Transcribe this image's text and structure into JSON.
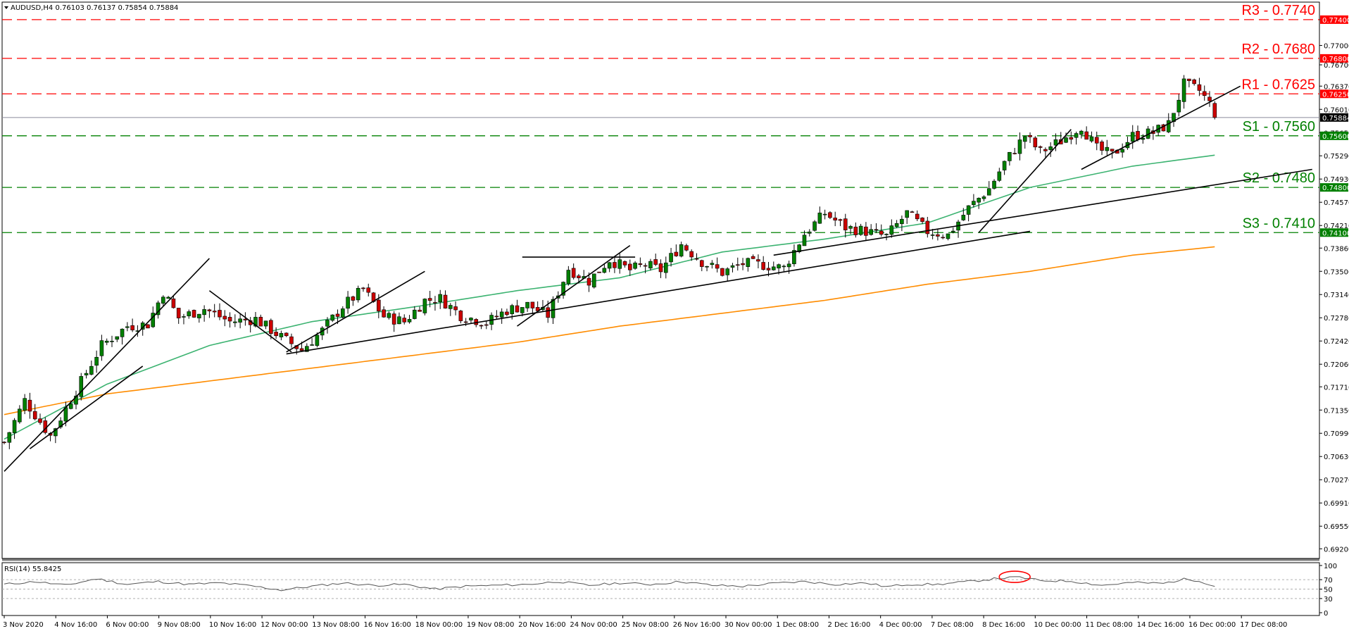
{
  "header": {
    "info": "AUDUSD,H4  0.76103 0.76137 0.75854 0.75884",
    "rsi_info": "RSI(14) 55.8425"
  },
  "chart_data": {
    "type": "candlestick",
    "symbol": "AUDUSD",
    "timeframe": "H4",
    "ohlc_last": {
      "open": 0.76103,
      "high": 0.76137,
      "low": 0.75854,
      "close": 0.75884
    },
    "current_price": 0.75884,
    "ylim": [
      0.6905,
      0.7765
    ],
    "ytick_labels": [
      "0.77400",
      "0.77000",
      "0.76700",
      "0.76370",
      "0.76010",
      "0.75650",
      "0.75290",
      "0.74930",
      "0.74570",
      "0.74210",
      "0.73860",
      "0.73500",
      "0.73140",
      "0.72780",
      "0.72420",
      "0.72060",
      "0.71710",
      "0.71350",
      "0.70990",
      "0.70630",
      "0.70270",
      "0.69910",
      "0.69550",
      "0.69200"
    ],
    "ytick_values": [
      0.774,
      0.77,
      0.767,
      0.7637,
      0.7601,
      0.7565,
      0.7529,
      0.7493,
      0.7457,
      0.7421,
      0.7386,
      0.735,
      0.7314,
      0.7278,
      0.7242,
      0.7206,
      0.7171,
      0.7135,
      0.7099,
      0.7063,
      0.7027,
      0.6991,
      0.6955,
      0.692
    ],
    "xtick_labels": [
      "3 Nov 2020",
      "4 Nov 16:00",
      "6 Nov 00:00",
      "9 Nov 08:00",
      "10 Nov 16:00",
      "12 Nov 00:00",
      "13 Nov 08:00",
      "16 Nov 16:00",
      "18 Nov 00:00",
      "19 Nov 08:00",
      "20 Nov 16:00",
      "24 Nov 00:00",
      "25 Nov 08:00",
      "26 Nov 16:00",
      "30 Nov 00:00",
      "1 Dec 08:00",
      "2 Dec 16:00",
      "4 Dec 00:00",
      "7 Dec 08:00",
      "8 Dec 16:00",
      "10 Dec 00:00",
      "11 Dec 08:00",
      "14 Dec 16:00",
      "16 Dec 00:00",
      "17 Dec 08:00"
    ],
    "levels": [
      {
        "label": "R3 - 0.7740",
        "value": 0.774,
        "tag": "0.77400",
        "color": "#ff0000"
      },
      {
        "label": "R2 - 0.7680",
        "value": 0.768,
        "tag": "0.76800",
        "color": "#ff0000"
      },
      {
        "label": "R1 - 0.7625",
        "value": 0.7625,
        "tag": "0.76250",
        "color": "#ff0000"
      },
      {
        "label": "S1 - 0.7560",
        "value": 0.756,
        "tag": "0.75600",
        "color": "#008000"
      },
      {
        "label": "S2 - 0.7480",
        "value": 0.748,
        "tag": "0.74800",
        "color": "#008000"
      },
      {
        "label": "S3 - 0.7410",
        "value": 0.741,
        "tag": "0.74100",
        "color": "#008000"
      }
    ],
    "price_tag": "0.75884",
    "candle_anchors": [
      [
        0,
        0.7085
      ],
      [
        4,
        0.715
      ],
      [
        9,
        0.7095
      ],
      [
        14,
        0.7165
      ],
      [
        19,
        0.7235
      ],
      [
        24,
        0.7265
      ],
      [
        28,
        0.7268
      ],
      [
        31,
        0.7318
      ],
      [
        34,
        0.7278
      ],
      [
        39,
        0.7292
      ],
      [
        44,
        0.7272
      ],
      [
        49,
        0.7276
      ],
      [
        54,
        0.7248
      ],
      [
        58,
        0.7228
      ],
      [
        62,
        0.7258
      ],
      [
        66,
        0.7296
      ],
      [
        70,
        0.7322
      ],
      [
        74,
        0.728
      ],
      [
        78,
        0.7272
      ],
      [
        82,
        0.7305
      ],
      [
        85,
        0.7308
      ],
      [
        89,
        0.7282
      ],
      [
        94,
        0.727
      ],
      [
        98,
        0.729
      ],
      [
        102,
        0.7298
      ],
      [
        106,
        0.7282
      ],
      [
        110,
        0.7354
      ],
      [
        114,
        0.7335
      ],
      [
        118,
        0.7368
      ],
      [
        122,
        0.7352
      ],
      [
        125,
        0.736
      ],
      [
        128,
        0.7352
      ],
      [
        132,
        0.7392
      ],
      [
        136,
        0.7365
      ],
      [
        140,
        0.7348
      ],
      [
        144,
        0.7362
      ],
      [
        148,
        0.736
      ],
      [
        152,
        0.7355
      ],
      [
        156,
        0.7408
      ],
      [
        160,
        0.744
      ],
      [
        164,
        0.7418
      ],
      [
        168,
        0.7412
      ],
      [
        172,
        0.7404
      ],
      [
        176,
        0.744
      ],
      [
        180,
        0.7412
      ],
      [
        184,
        0.7406
      ],
      [
        188,
        0.7448
      ],
      [
        192,
        0.7478
      ],
      [
        195,
        0.7518
      ],
      [
        199,
        0.756
      ],
      [
        202,
        0.7535
      ],
      [
        206,
        0.7552
      ],
      [
        210,
        0.7575
      ],
      [
        213,
        0.754
      ],
      [
        216,
        0.753
      ],
      [
        220,
        0.756
      ],
      [
        224,
        0.7565
      ],
      [
        227,
        0.7578
      ],
      [
        230,
        0.764
      ],
      [
        233,
        0.763
      ],
      [
        235,
        0.761
      ],
      [
        236,
        0.75884
      ]
    ],
    "ema_green": [
      [
        0,
        0.709
      ],
      [
        20,
        0.7175
      ],
      [
        40,
        0.7235
      ],
      [
        60,
        0.7272
      ],
      [
        80,
        0.7295
      ],
      [
        100,
        0.732
      ],
      [
        120,
        0.734
      ],
      [
        140,
        0.738
      ],
      [
        160,
        0.74
      ],
      [
        180,
        0.7425
      ],
      [
        200,
        0.748
      ],
      [
        220,
        0.7513
      ],
      [
        236,
        0.753
      ]
    ],
    "ema_orange": [
      [
        0,
        0.7128
      ],
      [
        20,
        0.716
      ],
      [
        40,
        0.718
      ],
      [
        60,
        0.72
      ],
      [
        80,
        0.722
      ],
      [
        100,
        0.724
      ],
      [
        120,
        0.7265
      ],
      [
        140,
        0.7285
      ],
      [
        160,
        0.7305
      ],
      [
        180,
        0.733
      ],
      [
        200,
        0.735
      ],
      [
        220,
        0.7375
      ],
      [
        236,
        0.7388
      ]
    ],
    "trendlines": [
      [
        [
          0,
          0.704
        ],
        [
          40,
          0.737
        ]
      ],
      [
        [
          5,
          0.7075
        ],
        [
          27,
          0.7203
        ]
      ],
      [
        [
          40,
          0.732
        ],
        [
          56,
          0.7225
        ]
      ],
      [
        [
          55,
          0.7225
        ],
        [
          82,
          0.735
        ]
      ],
      [
        [
          55,
          0.7222
        ],
        [
          200,
          0.7412
        ]
      ],
      [
        [
          100,
          0.7265
        ],
        [
          122,
          0.739
        ]
      ],
      [
        [
          101,
          0.7372
        ],
        [
          123,
          0.7372
        ]
      ],
      [
        [
          190,
          0.741
        ],
        [
          208,
          0.757
        ]
      ],
      [
        [
          210,
          0.7508
        ],
        [
          241,
          0.7637
        ]
      ],
      [
        [
          150,
          0.7375
        ],
        [
          255,
          0.7508
        ]
      ]
    ],
    "rsi": {
      "value": 55.8425,
      "ylim": [
        0,
        100
      ],
      "ytick_labels": [
        "100",
        "70",
        "50",
        "30",
        "0"
      ],
      "ytick_values": [
        100,
        70,
        50,
        30,
        0
      ],
      "anchors": [
        [
          0,
          60
        ],
        [
          6,
          66
        ],
        [
          12,
          58
        ],
        [
          18,
          72
        ],
        [
          24,
          60
        ],
        [
          30,
          66
        ],
        [
          36,
          60
        ],
        [
          42,
          63
        ],
        [
          48,
          57
        ],
        [
          54,
          48
        ],
        [
          60,
          56
        ],
        [
          66,
          63
        ],
        [
          72,
          58
        ],
        [
          78,
          60
        ],
        [
          84,
          50
        ],
        [
          90,
          56
        ],
        [
          96,
          58
        ],
        [
          102,
          60
        ],
        [
          108,
          66
        ],
        [
          114,
          58
        ],
        [
          120,
          63
        ],
        [
          126,
          60
        ],
        [
          132,
          66
        ],
        [
          138,
          58
        ],
        [
          144,
          56
        ],
        [
          150,
          62
        ],
        [
          156,
          66
        ],
        [
          162,
          60
        ],
        [
          168,
          63
        ],
        [
          172,
          55
        ],
        [
          176,
          60
        ],
        [
          182,
          60
        ],
        [
          188,
          66
        ],
        [
          194,
          73
        ],
        [
          198,
          75
        ],
        [
          202,
          68
        ],
        [
          208,
          67
        ],
        [
          214,
          58
        ],
        [
          220,
          64
        ],
        [
          226,
          62
        ],
        [
          230,
          71
        ],
        [
          233,
          68
        ],
        [
          236,
          56
        ]
      ],
      "highlight_index": 197
    }
  }
}
